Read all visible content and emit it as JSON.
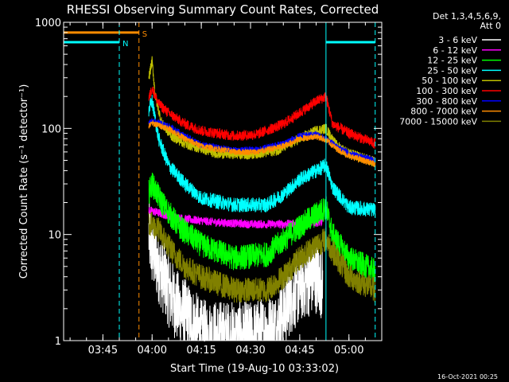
{
  "chart_data": {
    "type": "line",
    "title": "RHESSI Observing Summary Count Rates, Corrected",
    "xlabel": "Start Time (19-Aug-10 03:33:02)",
    "ylabel": "Corrected Count Rate (s⁻¹ detector⁻¹)",
    "y_scale": "log",
    "ylim": [
      1,
      1000
    ],
    "xlim": [
      "03:33:02",
      "05:10"
    ],
    "grid": false,
    "legend_position": "right",
    "legend_header": [
      "Det 1,3,4,5,6,9,",
      "Att 0"
    ],
    "x_ticks": [
      {
        "t": "03:45",
        "label": "03:45"
      },
      {
        "t": "04:00",
        "label": "04:00"
      },
      {
        "t": "04:15",
        "label": "04:15"
      },
      {
        "t": "04:30",
        "label": "04:30"
      },
      {
        "t": "04:45",
        "label": "04:45"
      },
      {
        "t": "05:00",
        "label": "05:00"
      }
    ],
    "y_ticks": [
      {
        "v": 1,
        "label": "1"
      },
      {
        "v": 10,
        "label": "10"
      },
      {
        "v": 100,
        "label": "100"
      },
      {
        "v": 1000,
        "label": "1000"
      }
    ],
    "series": [
      {
        "name": "3 - 6 keV",
        "color": "#ffffff",
        "noise": 0.35,
        "points": [
          [
            "03:59",
            "10"
          ],
          [
            "04:00",
            "7"
          ],
          [
            "04:02",
            "5"
          ],
          [
            "04:05",
            "3"
          ],
          [
            "04:08",
            "2"
          ],
          [
            "04:12",
            "1.5"
          ],
          [
            "04:15",
            "1.1"
          ],
          [
            "04:30",
            "1.05"
          ],
          [
            "04:38",
            "1.3"
          ],
          [
            "04:42",
            "2.5"
          ],
          [
            "04:46",
            "3.5"
          ],
          [
            "04:50",
            "4"
          ],
          [
            "04:52",
            "3.5"
          ]
        ]
      },
      {
        "name": "6 - 12 keV",
        "color": "#ff00ff",
        "noise": 0.04,
        "points": [
          [
            "03:59",
            "17"
          ],
          [
            "04:05",
            "15"
          ],
          [
            "04:10",
            "14"
          ],
          [
            "04:20",
            "13"
          ],
          [
            "04:30",
            "12.5"
          ],
          [
            "04:40",
            "12.5"
          ],
          [
            "04:50",
            "13"
          ],
          [
            "04:52",
            "13"
          ]
        ]
      },
      {
        "name": "12 - 25 keV",
        "color": "#00ff00",
        "noise": 0.12,
        "points": [
          [
            "03:59",
            "25"
          ],
          [
            "04:00",
            "30"
          ],
          [
            "04:03",
            "20"
          ],
          [
            "04:08",
            "12"
          ],
          [
            "04:15",
            "8"
          ],
          [
            "04:25",
            "6"
          ],
          [
            "04:35",
            "6.5"
          ],
          [
            "04:42",
            "10"
          ],
          [
            "04:48",
            "14"
          ],
          [
            "04:53",
            "18"
          ],
          [
            "04:55",
            "10"
          ],
          [
            "05:00",
            "6"
          ],
          [
            "05:08",
            "4.5"
          ]
        ]
      },
      {
        "name": "25 - 50 keV",
        "color": "#00ffff",
        "noise": 0.07,
        "points": [
          [
            "03:59",
            "150"
          ],
          [
            "04:00",
            "180"
          ],
          [
            "04:02",
            "80"
          ],
          [
            "04:05",
            "45"
          ],
          [
            "04:10",
            "30"
          ],
          [
            "04:15",
            "22"
          ],
          [
            "04:25",
            "19"
          ],
          [
            "04:35",
            "19"
          ],
          [
            "04:40",
            "24"
          ],
          [
            "04:45",
            "33"
          ],
          [
            "04:50",
            "40"
          ],
          [
            "04:53",
            "45"
          ],
          [
            "04:55",
            "28"
          ],
          [
            "05:00",
            "18"
          ],
          [
            "05:08",
            "17"
          ]
        ]
      },
      {
        "name": "50 - 100 keV",
        "color": "#c0c000",
        "noise": 0.05,
        "points": [
          [
            "03:59",
            "300"
          ],
          [
            "04:00",
            "430"
          ],
          [
            "04:01",
            "200"
          ],
          [
            "04:03",
            "110"
          ],
          [
            "04:06",
            "85"
          ],
          [
            "04:10",
            "72"
          ],
          [
            "04:20",
            "58"
          ],
          [
            "04:30",
            "57"
          ],
          [
            "04:38",
            "62"
          ],
          [
            "04:45",
            "80"
          ],
          [
            "04:50",
            "95"
          ],
          [
            "04:53",
            "100"
          ],
          [
            "04:56",
            "70"
          ],
          [
            "05:00",
            "58"
          ],
          [
            "05:08",
            "48"
          ]
        ]
      },
      {
        "name": "100 - 300 keV",
        "color": "#ff0000",
        "noise": 0.05,
        "points": [
          [
            "03:59",
            "190"
          ],
          [
            "04:00",
            "240"
          ],
          [
            "04:02",
            "170"
          ],
          [
            "04:05",
            "140"
          ],
          [
            "04:10",
            "110"
          ],
          [
            "04:15",
            "95"
          ],
          [
            "04:25",
            "85"
          ],
          [
            "04:32",
            "88"
          ],
          [
            "04:40",
            "110"
          ],
          [
            "04:45",
            "140"
          ],
          [
            "04:50",
            "180"
          ],
          [
            "04:53",
            "200"
          ],
          [
            "04:55",
            "110"
          ],
          [
            "05:00",
            "90"
          ],
          [
            "05:08",
            "72"
          ]
        ]
      },
      {
        "name": "300 - 800 keV",
        "color": "#0000ff",
        "noise": 0.03,
        "points": [
          [
            "03:59",
            "110"
          ],
          [
            "04:00",
            "118"
          ],
          [
            "04:05",
            "105"
          ],
          [
            "04:10",
            "85"
          ],
          [
            "04:15",
            "70"
          ],
          [
            "04:25",
            "62"
          ],
          [
            "04:32",
            "63"
          ],
          [
            "04:40",
            "72"
          ],
          [
            "04:45",
            "85"
          ],
          [
            "04:50",
            "88"
          ],
          [
            "04:53",
            "80"
          ],
          [
            "04:56",
            "68"
          ],
          [
            "05:00",
            "58"
          ],
          [
            "05:08",
            "50"
          ]
        ]
      },
      {
        "name": "800 - 7000 keV",
        "color": "#ff8c00",
        "noise": 0.03,
        "points": [
          [
            "03:59",
            "105"
          ],
          [
            "04:00",
            "112"
          ],
          [
            "04:05",
            "100"
          ],
          [
            "04:10",
            "80"
          ],
          [
            "04:15",
            "68"
          ],
          [
            "04:25",
            "60"
          ],
          [
            "04:32",
            "60"
          ],
          [
            "04:40",
            "68"
          ],
          [
            "04:45",
            "80"
          ],
          [
            "04:50",
            "84"
          ],
          [
            "04:53",
            "78"
          ],
          [
            "04:56",
            "65"
          ],
          [
            "05:00",
            "55"
          ],
          [
            "05:08",
            "46"
          ]
        ]
      },
      {
        "name": "7000 - 15000 keV",
        "color": "#808000",
        "noise": 0.12,
        "points": [
          [
            "03:59",
            "13"
          ],
          [
            "04:02",
            "11"
          ],
          [
            "04:06",
            "7"
          ],
          [
            "04:10",
            "5"
          ],
          [
            "04:15",
            "4"
          ],
          [
            "04:25",
            "3"
          ],
          [
            "04:35",
            "3"
          ],
          [
            "04:40",
            "4"
          ],
          [
            "04:45",
            "6"
          ],
          [
            "04:50",
            "8"
          ],
          [
            "04:53",
            "9"
          ],
          [
            "04:55",
            "7"
          ],
          [
            "05:00",
            "4"
          ],
          [
            "05:08",
            "3"
          ]
        ]
      }
    ],
    "annotations": [
      {
        "label": "S",
        "kind": "orange-bar",
        "color": "#ff8c00",
        "start": "03:33:02",
        "end": "03:56",
        "value": 800
      },
      {
        "label": "N",
        "kind": "cyan-bar",
        "color": "#00ffff",
        "start": "03:33:02",
        "end": "03:50",
        "value": 650
      },
      {
        "label": "",
        "kind": "cyan-bar",
        "color": "#00ffff",
        "start": "04:53",
        "end": "05:08",
        "value": 650
      },
      {
        "kind": "cyan-vline-dashed",
        "color": "#00ffff",
        "t": "03:50"
      },
      {
        "kind": "orange-vline-dashed",
        "color": "#ff8c00",
        "t": "03:56"
      },
      {
        "kind": "cyan-vline-solid",
        "color": "#00ffff",
        "t": "04:53"
      },
      {
        "kind": "cyan-vline-dashed",
        "color": "#00ffff",
        "t": "05:08"
      },
      {
        "kind": "cyan-vline-solid",
        "color": "#00ffff",
        "t": "03:33:02"
      }
    ]
  },
  "footer": {
    "timestamp": "16-Oct-2021 00:25"
  }
}
